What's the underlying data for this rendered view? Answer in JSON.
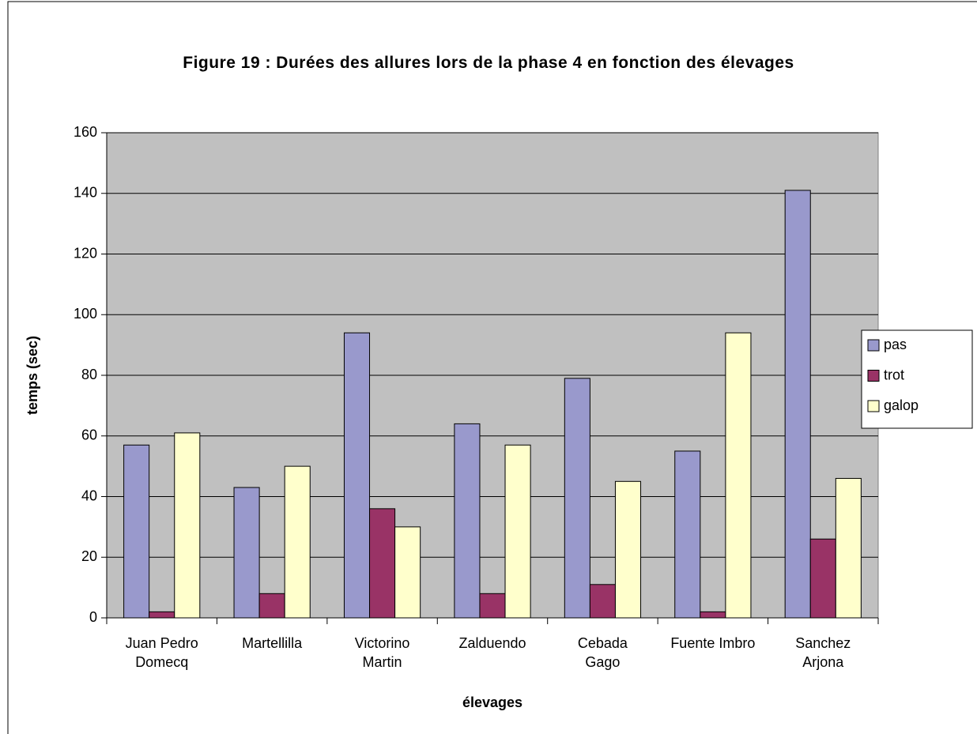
{
  "chart_data": {
    "type": "bar",
    "title": "Figure 19 : Durées des allures lors de la phase 4 en fonction des élevages",
    "x_label": "élevages",
    "y_label": "temps (sec)",
    "categories": [
      "Juan Pedro Domecq",
      "Martellilla",
      "Victorino Martin",
      "Zalduendo",
      "Cebada Gago",
      "Fuente Imbro",
      "Sanchez Arjona"
    ],
    "series": [
      {
        "name": "pas",
        "color": "#9999cc",
        "values": [
          57,
          43,
          94,
          64,
          79,
          55,
          141
        ]
      },
      {
        "name": "trot",
        "color": "#993366",
        "values": [
          2,
          8,
          36,
          8,
          11,
          2,
          26
        ]
      },
      {
        "name": "galop",
        "color": "#ffffcc",
        "values": [
          61,
          50,
          30,
          57,
          45,
          94,
          46
        ]
      }
    ],
    "ylim": [
      0,
      160
    ],
    "yticks": [
      0,
      20,
      40,
      60,
      80,
      100,
      120,
      140,
      160
    ],
    "grid": true,
    "legend": "right",
    "plot_background": "#c0c0c0"
  }
}
